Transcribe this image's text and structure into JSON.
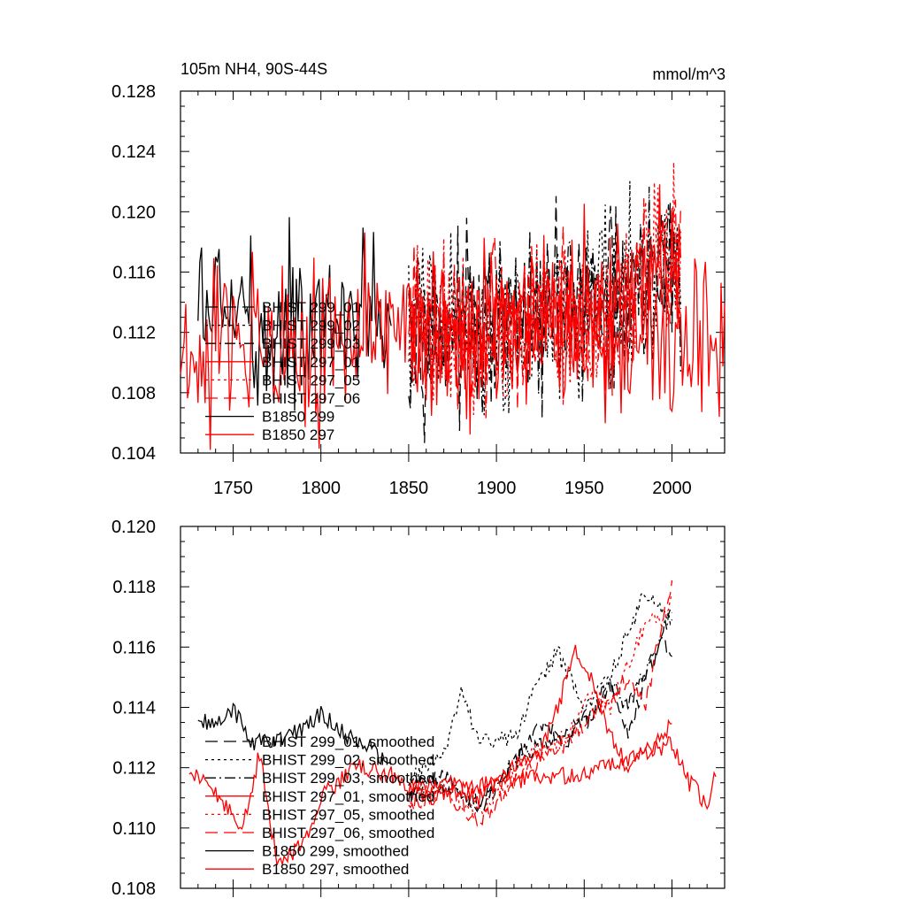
{
  "figure": {
    "left_title": "105m NH4, 90S-44S",
    "right_title": "mmol/m^3"
  },
  "chart_data": [
    {
      "type": "line",
      "title": "105m NH4, 90S-44S",
      "units": "mmol/m^3",
      "xlim": [
        1720,
        2030
      ],
      "ylim": [
        0.104,
        0.128
      ],
      "x_ticks": [
        1750,
        1800,
        1850,
        1900,
        1950,
        2000
      ],
      "y_ticks": [
        0.104,
        0.108,
        0.112,
        0.116,
        0.12,
        0.124,
        0.128
      ],
      "y_tick_labels": [
        "0.104",
        "0.108",
        "0.112",
        "0.116",
        "0.120",
        "0.124",
        "0.128"
      ],
      "x_tick_labels": [
        "1750",
        "1800",
        "1850",
        "1900",
        "1950",
        "2000"
      ],
      "series": [
        {
          "name": "BHIST 299_01",
          "color": "#000000",
          "dash": "long",
          "range": [
            1850,
            2005
          ],
          "x": [
            1850,
            1875,
            1900,
            1925,
            1950,
            1975,
            2000,
            2005
          ],
          "values": [
            0.1128,
            0.1125,
            0.1118,
            0.113,
            0.1138,
            0.1142,
            0.1158,
            0.1162
          ]
        },
        {
          "name": "BHIST 299_02",
          "color": "#000000",
          "dash": "dot",
          "range": [
            1850,
            2005
          ],
          "x": [
            1850,
            1875,
            1900,
            1925,
            1950,
            1975,
            2000,
            2005
          ],
          "values": [
            0.1125,
            0.1128,
            0.112,
            0.1136,
            0.1135,
            0.1145,
            0.1162,
            0.1165
          ]
        },
        {
          "name": "BHIST 299_03",
          "color": "#000000",
          "dash": "dashdot",
          "range": [
            1850,
            2005
          ],
          "x": [
            1850,
            1875,
            1900,
            1925,
            1950,
            1975,
            2000,
            2005
          ],
          "values": [
            0.1127,
            0.112,
            0.1126,
            0.1128,
            0.1132,
            0.114,
            0.116,
            0.1163
          ]
        },
        {
          "name": "BHIST 297_01",
          "color": "#ff0000",
          "dash": "solid",
          "range": [
            1850,
            2005
          ],
          "x": [
            1850,
            1875,
            1900,
            1925,
            1950,
            1975,
            2000,
            2005
          ],
          "values": [
            0.112,
            0.1118,
            0.1122,
            0.113,
            0.1134,
            0.114,
            0.1165,
            0.1168
          ]
        },
        {
          "name": "BHIST 297_05",
          "color": "#ff0000",
          "dash": "dot",
          "range": [
            1850,
            2005
          ],
          "x": [
            1850,
            1875,
            1900,
            1925,
            1950,
            1975,
            2000,
            2005
          ],
          "values": [
            0.1122,
            0.112,
            0.1118,
            0.1132,
            0.1136,
            0.1146,
            0.1168,
            0.117
          ]
        },
        {
          "name": "BHIST 297_06",
          "color": "#ff0000",
          "dash": "long",
          "range": [
            1850,
            2005
          ],
          "x": [
            1850,
            1875,
            1900,
            1925,
            1950,
            1975,
            2000,
            2005
          ],
          "values": [
            0.1124,
            0.1116,
            0.112,
            0.1129,
            0.1133,
            0.1143,
            0.117,
            0.1172
          ]
        },
        {
          "name": "B1850 299",
          "color": "#000000",
          "dash": "solid",
          "range": [
            1730,
            1840
          ],
          "x": [
            1730,
            1760,
            1790,
            1810,
            1840
          ],
          "values": [
            0.1135,
            0.113,
            0.1125,
            0.1122,
            0.112
          ]
        },
        {
          "name": "B1850 297",
          "color": "#ff0000",
          "dash": "solid",
          "range": [
            1720,
            2030
          ],
          "x": [
            1720,
            1760,
            1800,
            1850,
            1900,
            1950,
            2000,
            2030
          ],
          "values": [
            0.112,
            0.1118,
            0.1116,
            0.112,
            0.1122,
            0.112,
            0.1118,
            0.1116
          ]
        }
      ],
      "legend": [
        "BHIST 299_01",
        "BHIST 299_02",
        "BHIST 299_03",
        "BHIST 297_01",
        "BHIST 297_05",
        "BHIST 297_06",
        "B1850 299",
        "B1850 297"
      ],
      "legend_placement": "lower-left"
    },
    {
      "type": "line",
      "title": "",
      "xlim": [
        1720,
        2030
      ],
      "ylim": [
        0.108,
        0.12
      ],
      "y_ticks": [
        0.108,
        0.11,
        0.112,
        0.114,
        0.116,
        0.118,
        0.12
      ],
      "y_tick_labels": [
        "0.108",
        "0.110",
        "0.112",
        "0.114",
        "0.116",
        "0.118",
        "0.120"
      ],
      "x_ticks": [
        1750,
        1800,
        1850,
        1900,
        1950,
        2000
      ],
      "series": [
        {
          "name": "BHIST 299_01, smoothed",
          "color": "#000000",
          "dash": "long",
          "x": [
            1850,
            1870,
            1890,
            1910,
            1925,
            1940,
            1955,
            1965,
            1975,
            1985,
            1995,
            2000
          ],
          "values": [
            0.1112,
            0.1118,
            0.1105,
            0.1122,
            0.1135,
            0.1128,
            0.114,
            0.1148,
            0.113,
            0.115,
            0.1162,
            0.1158
          ]
        },
        {
          "name": "BHIST 299_02, smoothed",
          "color": "#000000",
          "dash": "dot",
          "x": [
            1850,
            1870,
            1880,
            1890,
            1910,
            1925,
            1935,
            1950,
            1965,
            1975,
            1985,
            1990,
            2000
          ],
          "values": [
            0.1115,
            0.1125,
            0.1145,
            0.1128,
            0.113,
            0.115,
            0.1158,
            0.114,
            0.115,
            0.1165,
            0.1178,
            0.1175,
            0.117
          ]
        },
        {
          "name": "BHIST 299_03, smoothed",
          "color": "#000000",
          "dash": "dashdot",
          "x": [
            1850,
            1870,
            1890,
            1910,
            1925,
            1940,
            1955,
            1965,
            1975,
            1985,
            1995,
            2000
          ],
          "values": [
            0.111,
            0.1114,
            0.1108,
            0.1122,
            0.1128,
            0.1132,
            0.1136,
            0.1148,
            0.114,
            0.1152,
            0.1165,
            0.1172
          ]
        },
        {
          "name": "BHIST 297_01, smoothed",
          "color": "#ff0000",
          "dash": "solid",
          "x": [
            1850,
            1870,
            1890,
            1910,
            1925,
            1935,
            1945,
            1955,
            1965,
            1975,
            1985,
            1995,
            2000
          ],
          "values": [
            0.1112,
            0.1116,
            0.111,
            0.112,
            0.1124,
            0.114,
            0.116,
            0.1148,
            0.113,
            0.112,
            0.1125,
            0.113,
            0.1135
          ]
        },
        {
          "name": "BHIST 297_05, smoothed",
          "color": "#ff0000",
          "dash": "dot",
          "x": [
            1850,
            1870,
            1890,
            1910,
            1925,
            1940,
            1955,
            1965,
            1975,
            1985,
            1995,
            2000
          ],
          "values": [
            0.111,
            0.1112,
            0.1105,
            0.1118,
            0.1126,
            0.113,
            0.1145,
            0.114,
            0.1155,
            0.1168,
            0.117,
            0.1178
          ]
        },
        {
          "name": "BHIST 297_06, smoothed",
          "color": "#ff0000",
          "dash": "long",
          "x": [
            1850,
            1870,
            1890,
            1910,
            1925,
            1940,
            1955,
            1965,
            1975,
            1985,
            1995,
            2000
          ],
          "values": [
            0.1108,
            0.1112,
            0.1102,
            0.1115,
            0.1122,
            0.1128,
            0.1138,
            0.1142,
            0.115,
            0.114,
            0.117,
            0.1182
          ]
        },
        {
          "name": "B1850 299, smoothed",
          "color": "#000000",
          "dash": "solid",
          "x": [
            1730,
            1740,
            1750,
            1760,
            1775,
            1790,
            1800,
            1815,
            1830,
            1840
          ],
          "values": [
            0.1136,
            0.1134,
            0.114,
            0.1128,
            0.113,
            0.1132,
            0.1138,
            0.113,
            0.1126,
            0.112
          ]
        },
        {
          "name": "B1850 297, smoothed",
          "color": "#ff0000",
          "dash": "solid",
          "x": [
            1725,
            1735,
            1745,
            1755,
            1765,
            1775,
            1790,
            1800,
            1820,
            1840,
            1860,
            1900,
            1950,
            2000,
            2010,
            2020,
            2025
          ],
          "values": [
            0.1118,
            0.1115,
            0.1108,
            0.1098,
            0.1125,
            0.1088,
            0.1095,
            0.111,
            0.112,
            0.1118,
            0.111,
            0.1115,
            0.1118,
            0.1128,
            0.1115,
            0.1108,
            0.1118
          ]
        }
      ],
      "legend": [
        "BHIST 299_01, smoothed",
        "BHIST 299_02, smoothed",
        "BHIST 299_03, smoothed",
        "BHIST 297_01, smoothed",
        "BHIST 297_05, smoothed",
        "BHIST 297_06, smoothed",
        "B1850 299, smoothed",
        "B1850 297, smoothed"
      ],
      "legend_placement": "lower-left"
    }
  ]
}
